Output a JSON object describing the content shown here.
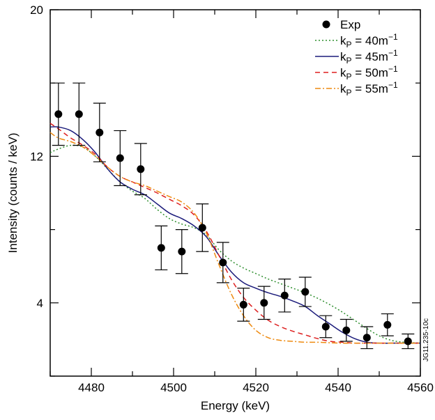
{
  "chart_data": {
    "type": "scatter",
    "xlabel": "Energy (keV)",
    "ylabel": "Intensity (counts / keV)",
    "xlim": [
      4470,
      4560
    ],
    "ylim": [
      0,
      20
    ],
    "x_ticks": [
      4480,
      4500,
      4520,
      4540,
      4560
    ],
    "x_tick_labels": [
      "4480",
      "4500",
      "4520",
      "4540",
      "4560"
    ],
    "y_ticks": [
      4,
      12,
      20
    ],
    "y_tick_labels": [
      "4",
      "12",
      "20"
    ],
    "legend": "top-right",
    "side_note": "JG11.235-10c",
    "legend_k_base": "k",
    "legend_k_sub": "P",
    "legend_unit_sup": "−1",
    "series": [
      {
        "name": "Exp",
        "kind": "points",
        "color": "#000000",
        "x": [
          4472,
          4477,
          4482,
          4487,
          4492,
          4497,
          4502,
          4507,
          4512,
          4517,
          4522,
          4527,
          4532,
          4537,
          4542,
          4547,
          4552,
          4557
        ],
        "y": [
          14.3,
          14.3,
          13.3,
          11.9,
          11.3,
          7.0,
          6.8,
          8.1,
          6.2,
          3.9,
          4.0,
          4.4,
          4.6,
          2.7,
          2.5,
          2.1,
          2.8,
          1.9
        ],
        "err": [
          1.7,
          1.7,
          1.6,
          1.5,
          1.4,
          1.2,
          1.2,
          1.3,
          1.1,
          0.9,
          0.9,
          0.9,
          0.8,
          0.6,
          0.6,
          0.6,
          0.6,
          0.4
        ]
      },
      {
        "name": "k_P = 40m^-1",
        "label_value": "40m",
        "kind": "line",
        "dash": "2,3",
        "color": "#2f8f2f",
        "x": [
          4470,
          4472,
          4475,
          4478,
          4481,
          4484,
          4487,
          4490,
          4493,
          4496,
          4499,
          4502,
          4505,
          4508,
          4511,
          4514,
          4517,
          4520,
          4523,
          4526,
          4529,
          4532,
          4535,
          4538,
          4541,
          4544,
          4547,
          4550,
          4553,
          4556,
          4560
        ],
        "y": [
          12.2,
          12.4,
          12.6,
          12.5,
          12.0,
          11.3,
          10.6,
          10.1,
          9.7,
          9.1,
          8.6,
          8.3,
          8.1,
          7.7,
          6.9,
          6.3,
          5.9,
          5.6,
          5.3,
          5.05,
          4.8,
          4.55,
          4.25,
          3.9,
          3.5,
          3.05,
          2.6,
          2.2,
          1.95,
          1.85,
          1.8
        ]
      },
      {
        "name": "k_P = 45m^-1",
        "label_value": "45m",
        "kind": "line",
        "dash": "",
        "color": "#1a1a7a",
        "x": [
          4470,
          4472,
          4475,
          4478,
          4481,
          4484,
          4487,
          4490,
          4493,
          4496,
          4499,
          4502,
          4505,
          4508,
          4511,
          4514,
          4517,
          4520,
          4523,
          4526,
          4529,
          4532,
          4535,
          4538,
          4541,
          4544,
          4547,
          4550,
          4553,
          4556,
          4560
        ],
        "y": [
          13.6,
          13.6,
          13.4,
          12.9,
          12.2,
          11.3,
          10.6,
          10.2,
          9.9,
          9.4,
          8.9,
          8.6,
          8.2,
          7.6,
          6.6,
          5.7,
          5.1,
          4.8,
          4.55,
          4.35,
          4.1,
          3.8,
          3.3,
          2.85,
          2.4,
          2.05,
          1.85,
          1.8,
          1.8,
          1.8,
          1.8
        ]
      },
      {
        "name": "k_P = 50m^-1",
        "label_value": "50m",
        "kind": "line",
        "dash": "7,5",
        "color": "#dd1f1f",
        "x": [
          4470,
          4472,
          4475,
          4478,
          4481,
          4484,
          4487,
          4490,
          4493,
          4496,
          4499,
          4502,
          4505,
          4508,
          4511,
          4514,
          4517,
          4520,
          4523,
          4526,
          4529,
          4532,
          4535,
          4538,
          4541,
          4544,
          4547,
          4550,
          4553,
          4556,
          4560
        ],
        "y": [
          13.8,
          13.5,
          13.0,
          12.6,
          12.1,
          11.4,
          10.9,
          10.6,
          10.3,
          10.0,
          9.65,
          9.3,
          8.8,
          7.9,
          6.6,
          5.3,
          4.3,
          3.6,
          3.05,
          2.7,
          2.45,
          2.25,
          2.05,
          1.9,
          1.85,
          1.8,
          1.8,
          1.8,
          1.8,
          1.8,
          1.8
        ]
      },
      {
        "name": "k_P = 55m^-1",
        "label_value": "55m",
        "kind": "line",
        "dash": "8,3,2,3",
        "color": "#ee8a10",
        "x": [
          4470,
          4472,
          4475,
          4478,
          4481,
          4484,
          4487,
          4490,
          4493,
          4496,
          4499,
          4502,
          4505,
          4508,
          4511,
          4514,
          4517,
          4520,
          4523,
          4526,
          4529,
          4532,
          4535,
          4538,
          4541,
          4544,
          4547,
          4550,
          4553,
          4556,
          4560
        ],
        "y": [
          13.3,
          13.0,
          12.8,
          12.5,
          12.0,
          11.4,
          10.9,
          10.6,
          10.4,
          10.1,
          9.8,
          9.5,
          8.9,
          7.8,
          6.1,
          4.5,
          3.3,
          2.5,
          2.1,
          1.95,
          1.9,
          1.85,
          1.85,
          1.82,
          1.8,
          1.8,
          1.8,
          1.8,
          1.8,
          1.8,
          1.8
        ]
      }
    ]
  }
}
